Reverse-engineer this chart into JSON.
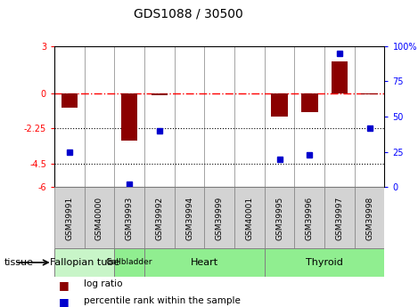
{
  "title": "GDS1088 / 30500",
  "samples": [
    "GSM39991",
    "GSM40000",
    "GSM39993",
    "GSM39992",
    "GSM39994",
    "GSM39999",
    "GSM40001",
    "GSM39995",
    "GSM39996",
    "GSM39997",
    "GSM39998"
  ],
  "log_ratio": [
    -0.9,
    0.0,
    -3.0,
    -0.15,
    0.0,
    0.0,
    0.0,
    -1.5,
    -1.2,
    2.0,
    -0.05
  ],
  "percentile_rank": [
    25,
    null,
    2,
    40,
    null,
    null,
    null,
    20,
    23,
    95,
    42
  ],
  "tissues": [
    {
      "label": "Fallopian tube",
      "start": 0,
      "end": 2,
      "color": "#c8f5c8"
    },
    {
      "label": "Gallbladder",
      "start": 2,
      "end": 3,
      "color": "#90ee90"
    },
    {
      "label": "Heart",
      "start": 3,
      "end": 7,
      "color": "#90ee90"
    },
    {
      "label": "Thyroid",
      "start": 7,
      "end": 11,
      "color": "#90ee90"
    }
  ],
  "ylim_left": [
    -6,
    3
  ],
  "ylim_right": [
    0,
    100
  ],
  "yticks_left": [
    -6,
    -4.5,
    -2.25,
    0,
    3
  ],
  "yticks_right": [
    0,
    25,
    50,
    75,
    100
  ],
  "ytick_labels_left": [
    "-6",
    "-4.5",
    "-2.25",
    "0",
    "3"
  ],
  "ytick_labels_right": [
    "0",
    "25",
    "50",
    "75",
    "100%"
  ],
  "hline_zero": 0,
  "hline_dots": [
    -2.25,
    -4.5
  ],
  "bar_color": "#8B0000",
  "point_color": "#0000CD",
  "bar_width": 0.55,
  "plot_bg_color": "#ffffff",
  "sample_box_color": "#d3d3d3",
  "tissue_fallopian_color": "#c8f5c8",
  "tissue_green_color": "#5cd65c"
}
